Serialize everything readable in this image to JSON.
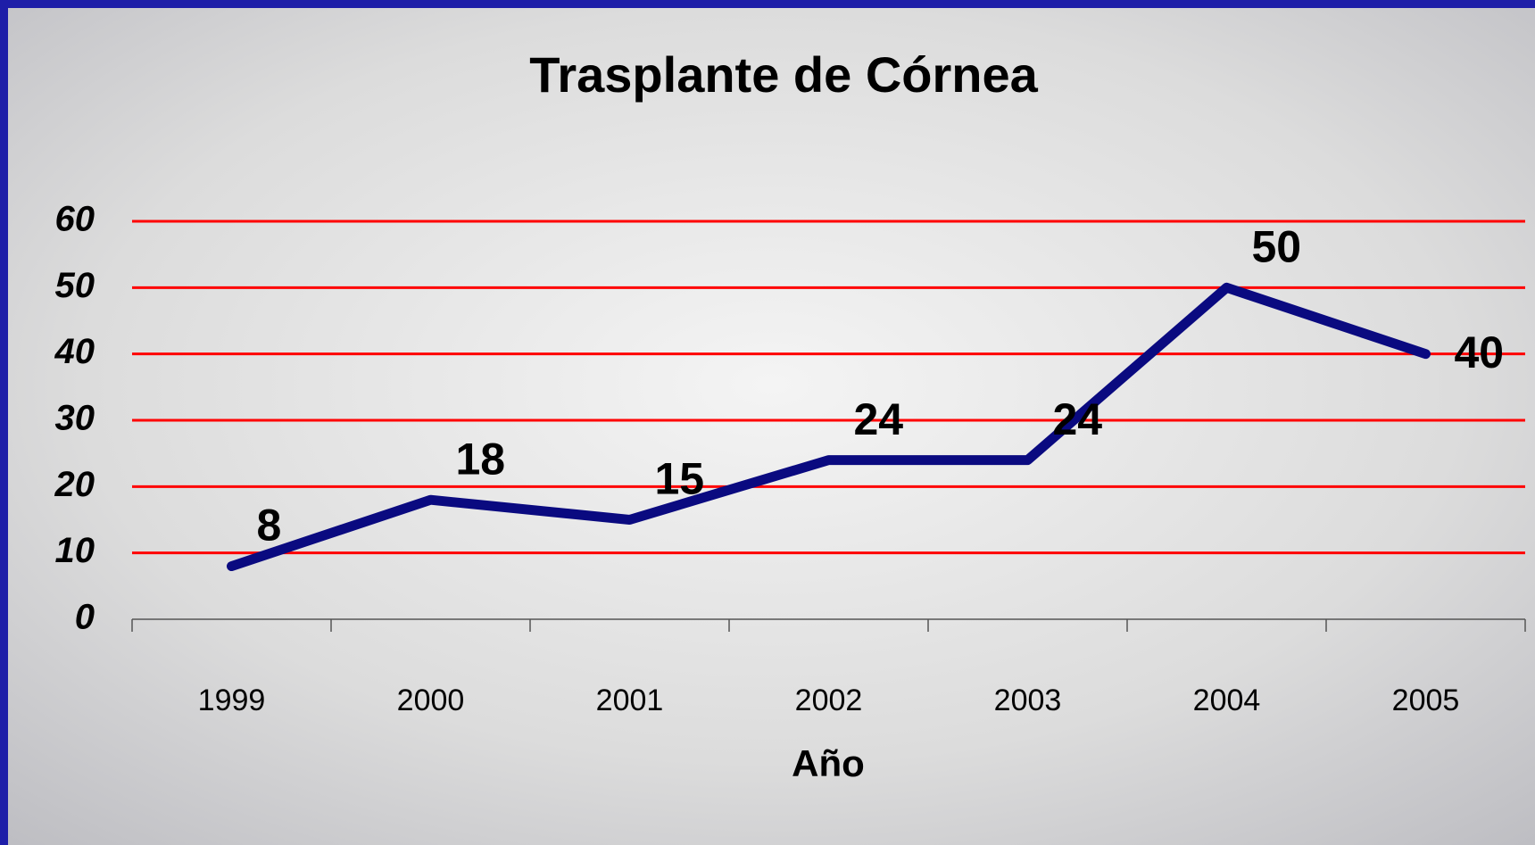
{
  "chart_data": {
    "type": "line",
    "title": "Trasplante de Córnea",
    "x_label": "Año",
    "categories": [
      "1999",
      "2000",
      "2001",
      "2002",
      "2003",
      "2004",
      "2005"
    ],
    "values": [
      8,
      18,
      15,
      24,
      24,
      50,
      40
    ],
    "color": "#0a0a80",
    "grid_color": "#ff0000",
    "ylim": [
      0,
      60
    ],
    "yticks": [
      0,
      10,
      20,
      30,
      40,
      50,
      60
    ],
    "grid": true
  }
}
